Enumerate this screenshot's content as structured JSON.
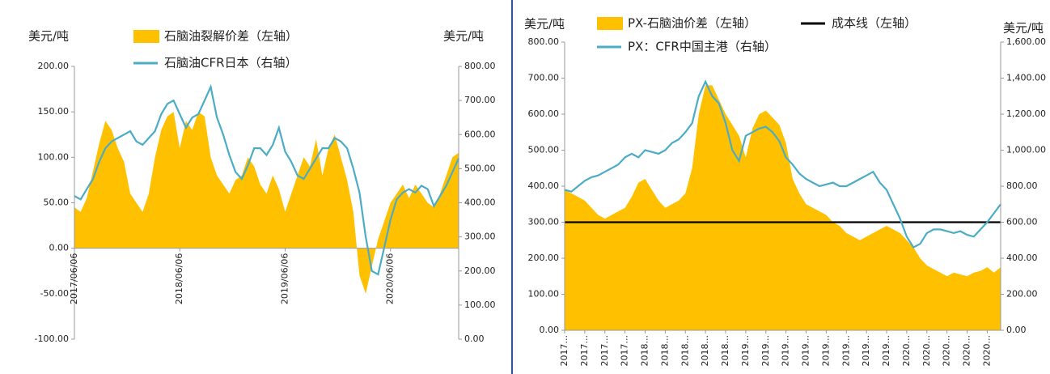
{
  "chart_data": [
    {
      "type": "combo",
      "y_label": "美元/吨",
      "y2_label": "美元/吨",
      "categories": [
        "2017/06/06",
        null,
        null,
        null,
        null,
        null,
        null,
        null,
        null,
        null,
        null,
        null,
        null,
        null,
        null,
        null,
        null,
        "2018/06/06",
        null,
        null,
        null,
        null,
        null,
        null,
        null,
        null,
        null,
        null,
        null,
        null,
        null,
        null,
        null,
        null,
        "2019/06/06",
        null,
        null,
        null,
        null,
        null,
        null,
        null,
        null,
        null,
        null,
        null,
        null,
        null,
        null,
        null,
        null,
        "2020/06/06",
        null,
        null,
        null,
        null,
        null,
        null,
        null,
        null,
        null,
        null,
        null
      ],
      "series": [
        {
          "name": "石脑油裂解价差（左轴）",
          "type": "area",
          "color": "#ffc000",
          "values": [
            45,
            40,
            55,
            85,
            115,
            140,
            130,
            110,
            95,
            60,
            50,
            40,
            60,
            100,
            130,
            145,
            150,
            110,
            140,
            130,
            150,
            145,
            100,
            80,
            70,
            60,
            75,
            80,
            100,
            90,
            70,
            60,
            80,
            65,
            40,
            60,
            80,
            100,
            90,
            120,
            80,
            110,
            125,
            100,
            75,
            40,
            -30,
            -50,
            -20,
            10,
            30,
            50,
            60,
            70,
            55,
            70,
            60,
            50,
            45,
            60,
            80,
            100,
            105
          ]
        },
        {
          "name": "石脑油CFR日本（右轴）",
          "type": "line",
          "axis": "y2",
          "color": "#4bacc6",
          "values": [
            420,
            410,
            440,
            470,
            520,
            560,
            580,
            590,
            600,
            610,
            580,
            570,
            590,
            610,
            660,
            690,
            700,
            660,
            620,
            650,
            660,
            700,
            740,
            650,
            600,
            540,
            490,
            470,
            510,
            560,
            560,
            540,
            570,
            620,
            550,
            520,
            480,
            470,
            500,
            530,
            560,
            560,
            590,
            580,
            560,
            500,
            430,
            300,
            200,
            190,
            270,
            350,
            410,
            430,
            440,
            430,
            450,
            440,
            390,
            420,
            450,
            490,
            530
          ]
        }
      ],
      "ylim": [
        -100,
        200
      ],
      "yticks": [
        {
          "value": -100,
          "label": "-100.00"
        },
        {
          "value": -50,
          "label": "-50.00"
        },
        {
          "value": 0,
          "label": "0.00"
        },
        {
          "value": 50,
          "label": "50.00"
        },
        {
          "value": 100,
          "label": "100.00"
        },
        {
          "value": 150,
          "label": "150.00"
        },
        {
          "value": 200,
          "label": "200.00"
        }
      ],
      "y2lim": [
        0,
        800
      ],
      "y2ticks": [
        {
          "value": 0,
          "label": "0.00"
        },
        {
          "value": 100,
          "label": "100.00"
        },
        {
          "value": 200,
          "label": "200.00"
        },
        {
          "value": 300,
          "label": "300.00"
        },
        {
          "value": 400,
          "label": "400.00"
        },
        {
          "value": 500,
          "label": "500.00"
        },
        {
          "value": 600,
          "label": "600.00"
        },
        {
          "value": 700,
          "label": "700.00"
        },
        {
          "value": 800,
          "label": "800.00"
        }
      ]
    },
    {
      "type": "combo",
      "y_label": "美元/吨",
      "y2_label": "美元/吨",
      "categories": [
        "2017...",
        null,
        null,
        "2017...",
        null,
        null,
        "2017...",
        null,
        null,
        "2017...",
        null,
        null,
        "2018...",
        null,
        null,
        "2018...",
        null,
        null,
        "2018...",
        null,
        null,
        "2018...",
        null,
        null,
        "2018...",
        null,
        null,
        "2019...",
        null,
        null,
        "2019...",
        null,
        null,
        "2019...",
        null,
        null,
        "2019...",
        null,
        null,
        "2019...",
        null,
        null,
        "2019...",
        null,
        null,
        "2019...",
        null,
        null,
        "2019...",
        null,
        null,
        "2020...",
        null,
        null,
        "2020...",
        null,
        null,
        "2020...",
        null,
        null,
        "2020...",
        null,
        null,
        "2020...",
        null,
        null
      ],
      "series": [
        {
          "name": "PX-石脑油价差（左轴）",
          "type": "area",
          "color": "#ffc000",
          "values": [
            390,
            380,
            370,
            360,
            340,
            320,
            310,
            320,
            330,
            340,
            370,
            410,
            420,
            390,
            360,
            340,
            350,
            360,
            380,
            450,
            600,
            680,
            680,
            640,
            600,
            570,
            540,
            480,
            560,
            600,
            610,
            590,
            570,
            520,
            420,
            380,
            350,
            340,
            330,
            320,
            300,
            290,
            270,
            260,
            250,
            260,
            270,
            280,
            290,
            280,
            270,
            250,
            230,
            200,
            180,
            170,
            160,
            150,
            160,
            155,
            150,
            160,
            165,
            175,
            160,
            175
          ]
        },
        {
          "name": "成本线（左轴）",
          "type": "line",
          "color": "#000000",
          "values": [
            300,
            300,
            300,
            300,
            300,
            300,
            300,
            300,
            300,
            300,
            300,
            300,
            300,
            300,
            300,
            300,
            300,
            300,
            300,
            300,
            300,
            300,
            300,
            300,
            300,
            300,
            300,
            300,
            300,
            300,
            300,
            300,
            300,
            300,
            300,
            300,
            300,
            300,
            300,
            300,
            300,
            300,
            300,
            300,
            300,
            300,
            300,
            300,
            300,
            300,
            300,
            300,
            300,
            300,
            300,
            300,
            300,
            300,
            300,
            300,
            300,
            300,
            300,
            300,
            300,
            300
          ]
        },
        {
          "name": "PX：CFR中国主港（右轴）",
          "type": "line",
          "axis": "y2",
          "color": "#4bacc6",
          "values": [
            780,
            770,
            800,
            830,
            850,
            860,
            880,
            900,
            920,
            960,
            980,
            960,
            1000,
            990,
            980,
            1000,
            1040,
            1060,
            1100,
            1150,
            1300,
            1380,
            1300,
            1260,
            1150,
            1000,
            940,
            1080,
            1100,
            1120,
            1130,
            1100,
            1050,
            960,
            920,
            870,
            840,
            820,
            800,
            810,
            820,
            800,
            800,
            820,
            840,
            860,
            880,
            820,
            780,
            700,
            620,
            520,
            460,
            480,
            540,
            560,
            560,
            550,
            540,
            550,
            530,
            520,
            560,
            600,
            650,
            700
          ]
        }
      ],
      "ylim": [
        0,
        800
      ],
      "yticks": [
        {
          "value": 0,
          "label": "0.00"
        },
        {
          "value": 100,
          "label": "100.00"
        },
        {
          "value": 200,
          "label": "200.00"
        },
        {
          "value": 300,
          "label": "300.00"
        },
        {
          "value": 400,
          "label": "400.00"
        },
        {
          "value": 500,
          "label": "500.00"
        },
        {
          "value": 600,
          "label": "600.00"
        },
        {
          "value": 700,
          "label": "700.00"
        },
        {
          "value": 800,
          "label": "800.00"
        }
      ],
      "y2lim": [
        0,
        1600
      ],
      "y2ticks": [
        {
          "value": 0,
          "label": "0.00"
        },
        {
          "value": 200,
          "label": "200.00"
        },
        {
          "value": 400,
          "label": "400.00"
        },
        {
          "value": 600,
          "label": "600.00"
        },
        {
          "value": 800,
          "label": "800.00"
        },
        {
          "value": 1000,
          "label": "1,000.00"
        },
        {
          "value": 1200,
          "label": "1,200.00"
        },
        {
          "value": 1400,
          "label": "1,400.00"
        },
        {
          "value": 1600,
          "label": "1,600.00"
        }
      ]
    }
  ]
}
